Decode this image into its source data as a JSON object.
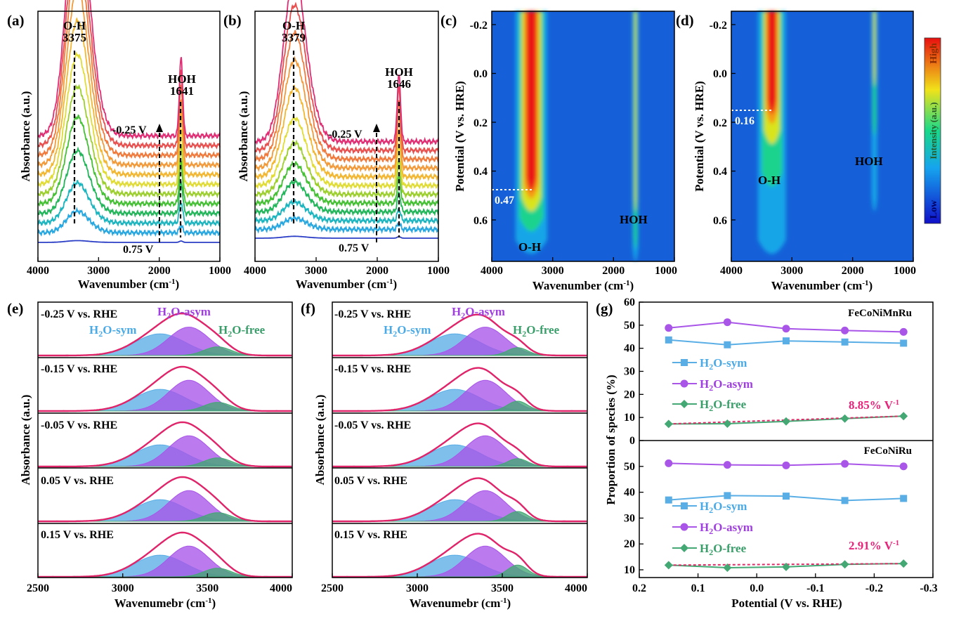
{
  "chart_data": [
    {
      "id": "a",
      "panel_label": "(a)",
      "type": "line",
      "xlabel_main": "Wavenumber (cm",
      "xlabel_sup": "-1",
      "xlabel_close": ")",
      "ylabel": "Absorbance (a.u.)",
      "xlim": [
        4000,
        1000
      ],
      "xticks": [
        4000,
        3000,
        2000,
        1000
      ],
      "oh_label": "O-H",
      "oh_value": "3375",
      "hoh_label": "HOH",
      "hoh_value": "1641",
      "top_potential_label": "-0.25 V",
      "bottom_potential_label": "0.75 V",
      "oh_peak_position": 3375,
      "hoh_peak_position": 1641,
      "series_colors": [
        "#2b3ec6",
        "#27a7df",
        "#1cb5bf",
        "#22b55a",
        "#45c035",
        "#9ccf2e",
        "#e0dc35",
        "#f2b630",
        "#f29a3a",
        "#f07a3c",
        "#e8504f",
        "#e02d73"
      ],
      "oh_heights": [
        0.02,
        0.24,
        0.45,
        0.7,
        0.97,
        1.2,
        1.45,
        1.72,
        1.97,
        2.22,
        2.45,
        2.72
      ],
      "hoh_heights": [
        0.02,
        0.1,
        0.3,
        0.45,
        0.58,
        0.68,
        0.78,
        0.88,
        0.95,
        1.0,
        1.05,
        1.1
      ]
    },
    {
      "id": "b",
      "panel_label": "(b)",
      "type": "line",
      "xlabel_main": "Wavenumber (cm",
      "xlabel_sup": "-1",
      "xlabel_close": ")",
      "ylabel": "Absorbance (a.u.)",
      "xlim": [
        4000,
        1000
      ],
      "xticks": [
        4000,
        3000,
        2000,
        1000
      ],
      "oh_label": "O-H",
      "oh_value": "3379",
      "hoh_label": "HOH",
      "hoh_value": "1646",
      "top_potential_label": "-0.25 V",
      "bottom_potential_label": "0.75 V",
      "oh_peak_position": 3379,
      "hoh_peak_position": 1646,
      "series_colors": [
        "#2b3ec6",
        "#27a7df",
        "#1cb5bf",
        "#22b55a",
        "#45c035",
        "#9ccf2e",
        "#e0dc35",
        "#f2b630",
        "#f29a3a",
        "#f07a3c",
        "#e8504f",
        "#e02d73"
      ],
      "oh_heights": [
        0.02,
        0.12,
        0.2,
        0.32,
        0.42,
        0.55,
        0.72,
        0.95,
        1.15,
        1.35,
        1.55,
        1.75
      ],
      "hoh_heights": [
        0.02,
        0.08,
        0.15,
        0.25,
        0.35,
        0.45,
        0.55,
        0.65,
        0.72,
        0.78,
        0.84,
        0.9
      ]
    },
    {
      "id": "c",
      "panel_label": "(c)",
      "type": "heatmap",
      "xlabel_main": "Wavenumber (cm",
      "xlabel_sup": "-1",
      "xlabel_close": ")",
      "ylabel": "Potential (V vs. HRE)",
      "xlim": [
        4000,
        1000
      ],
      "xticks": [
        4000,
        3000,
        2000,
        1000
      ],
      "ylim": [
        -0.25,
        0.75
      ],
      "yticks": [
        -0.2,
        0.0,
        0.2,
        0.4,
        0.6
      ],
      "ytick_labels": [
        "-0.2",
        "0.0",
        "0.2",
        "0.4",
        "0.6"
      ],
      "onset_potential": 0.47,
      "onset_label": "0.47",
      "oh_label": "O-H",
      "hoh_label": "HOH"
    },
    {
      "id": "d",
      "panel_label": "(d)",
      "type": "heatmap",
      "xlabel_main": "Wavenumber (cm",
      "xlabel_sup": "-1",
      "xlabel_close": ")",
      "ylabel": "Potential (V vs. HRE)",
      "xlim": [
        4000,
        1000
      ],
      "xticks": [
        4000,
        3000,
        2000,
        1000
      ],
      "ylim": [
        -0.25,
        0.75
      ],
      "yticks": [
        -0.2,
        0.0,
        0.2,
        0.4,
        0.6
      ],
      "ytick_labels": [
        "-0.2",
        "0.0",
        "0.2",
        "0.4",
        "0.6"
      ],
      "onset_potential": 0.16,
      "onset_label": "0.16",
      "oh_label": "O-H",
      "hoh_label": "HOH",
      "colorbar": {
        "high_label": "High",
        "mid_label": "Intensity (a.u.)",
        "low_label": "Low"
      }
    },
    {
      "id": "e",
      "panel_label": "(e)",
      "type": "area",
      "xlabel_main": "Wavenumebr (cm",
      "xlabel_sup": "-1",
      "xlabel_close": ")",
      "ylabel": "Absorbance (a.u.)",
      "xlim": [
        2500,
        4000
      ],
      "xticks": [
        2500,
        3000,
        3500,
        4000
      ],
      "legend": {
        "sym_main": "H",
        "sym_sub": "2",
        "sym_rest": "O-sym",
        "asym_main": "H",
        "asym_sub": "2",
        "asym_rest": "O-asym",
        "free_main": "H",
        "free_sub": "2",
        "free_rest": "O-free"
      },
      "components": [
        {
          "name": "H2O-sym",
          "center": 3220,
          "width": 150,
          "color": "#5aaee6"
        },
        {
          "name": "H2O-asym",
          "center": 3390,
          "width": 120,
          "color": "#a855e8"
        },
        {
          "name": "H2O-free",
          "center": 3560,
          "width": 80,
          "color": "#43a873"
        }
      ],
      "subpanels": [
        {
          "label": "-0.25 V vs. RHE",
          "amps": [
            0.55,
            0.72,
            0.22
          ]
        },
        {
          "label": "-0.15 V vs. RHE",
          "amps": [
            0.55,
            0.78,
            0.22
          ]
        },
        {
          "label": "-0.05 V vs. RHE",
          "amps": [
            0.55,
            0.78,
            0.22
          ]
        },
        {
          "label": "0.05 V vs. RHE",
          "amps": [
            0.55,
            0.78,
            0.22
          ]
        },
        {
          "label": "0.15 V vs. RHE",
          "amps": [
            0.55,
            0.78,
            0.22
          ]
        }
      ]
    },
    {
      "id": "f",
      "panel_label": "(f)",
      "type": "area",
      "xlabel_main": "Wavenumebr (cm",
      "xlabel_sup": "-1",
      "xlabel_close": ")",
      "ylabel": "Absorbance (a.u.)",
      "xlim": [
        2500,
        4000
      ],
      "xticks": [
        2500,
        3000,
        3500,
        4000
      ],
      "legend": {
        "sym_main": "H",
        "sym_sub": "2",
        "sym_rest": "O-sym",
        "asym_main": "H",
        "asym_sub": "2",
        "asym_rest": "O-asym",
        "free_main": "H",
        "free_sub": "2",
        "free_rest": "O-free"
      },
      "components": [
        {
          "name": "H2O-sym",
          "center": 3220,
          "width": 150,
          "color": "#5aaee6"
        },
        {
          "name": "H2O-asym",
          "center": 3400,
          "width": 120,
          "color": "#a855e8"
        },
        {
          "name": "H2O-free",
          "center": 3590,
          "width": 60,
          "color": "#43a873"
        }
      ],
      "subpanels": [
        {
          "label": "-0.25 V vs. RHE",
          "amps": [
            0.55,
            0.72,
            0.2
          ]
        },
        {
          "label": "-0.15 V vs. RHE",
          "amps": [
            0.55,
            0.78,
            0.25
          ]
        },
        {
          "label": "-0.05 V vs. RHE",
          "amps": [
            0.55,
            0.78,
            0.2
          ]
        },
        {
          "label": "0.05 V vs. RHE",
          "amps": [
            0.55,
            0.78,
            0.25
          ]
        },
        {
          "label": "0.15 V vs. RHE",
          "amps": [
            0.55,
            0.78,
            0.3
          ]
        }
      ]
    },
    {
      "id": "g",
      "panel_label": "(g)",
      "type": "line",
      "xlabel": "Potential (V vs. RHE)",
      "ylabel": "Proportion of species (%)",
      "xlim": [
        0.2,
        -0.3
      ],
      "xticks": [
        0.2,
        0.1,
        0.0,
        -0.1,
        -0.2,
        -0.3
      ],
      "xtick_labels": [
        "0.2",
        "0.1",
        "0.0",
        "-0.1",
        "-0.2",
        "-0.3"
      ],
      "x": [
        0.15,
        0.05,
        -0.05,
        -0.15,
        -0.25
      ],
      "subplots": [
        {
          "title": "FeCoNiMnRu",
          "ylim": [
            0,
            60
          ],
          "yticks": [
            0,
            10,
            20,
            30,
            40,
            50,
            60
          ],
          "slope_label": "8.85% V",
          "slope_sup": "-1",
          "series": [
            {
              "name": "H2O-sym",
              "main": "H",
              "sub": "2",
              "rest": "O-sym",
              "marker": "square",
              "color": "#5aaee6",
              "values": [
                43.6,
                41.5,
                43.2,
                42.7,
                42.2
              ]
            },
            {
              "name": "H2O-asym",
              "main": "H",
              "sub": "2",
              "rest": "O-asym",
              "marker": "circle",
              "color": "#a855e8",
              "values": [
                48.8,
                51.3,
                48.5,
                47.7,
                47.1
              ]
            },
            {
              "name": "H2O-free",
              "main": "H",
              "sub": "2",
              "rest": "O-free",
              "marker": "diamond",
              "color": "#43a873",
              "values": [
                7.2,
                7.3,
                8.3,
                9.5,
                10.6
              ]
            }
          ]
        },
        {
          "title": "FeCoNiRu",
          "ylim": [
            7,
            60
          ],
          "yticks": [
            10,
            20,
            30,
            40,
            50
          ],
          "slope_label": "2.91% V",
          "slope_sup": "-1",
          "series": [
            {
              "name": "H2O-sym",
              "main": "H",
              "sub": "2",
              "rest": "O-sym",
              "marker": "square",
              "color": "#5aaee6",
              "values": [
                37.0,
                38.7,
                38.5,
                36.8,
                37.6
              ]
            },
            {
              "name": "H2O-asym",
              "main": "H",
              "sub": "2",
              "rest": "O-asym",
              "marker": "circle",
              "color": "#a855e8",
              "values": [
                51.2,
                50.6,
                50.4,
                51.0,
                50.0
              ]
            },
            {
              "name": "H2O-free",
              "main": "H",
              "sub": "2",
              "rest": "O-free",
              "marker": "diamond",
              "color": "#43a873",
              "values": [
                11.8,
                10.8,
                11.1,
                12.1,
                12.4
              ]
            }
          ]
        }
      ]
    }
  ]
}
